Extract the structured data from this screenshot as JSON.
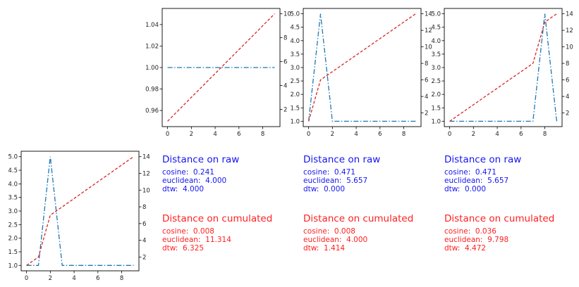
{
  "colors": {
    "blue_series": "#1f77b4",
    "red_series": "#d62728",
    "raw_text": "#1515f0",
    "cum_text": "#ff2020"
  },
  "chart_data": [
    {
      "id": "top-left",
      "type": "line",
      "x": [
        0,
        1,
        2,
        3,
        4,
        5,
        6,
        7,
        8,
        9
      ],
      "series": [
        {
          "axis": "left",
          "style": "dashdot",
          "color": "#1f77b4",
          "values": [
            1,
            1,
            1,
            1,
            1,
            1,
            1,
            1,
            1,
            1
          ]
        },
        {
          "axis": "right",
          "style": "dashed",
          "color": "#d62728",
          "values": [
            1,
            2,
            3,
            4,
            5,
            6,
            7,
            8,
            9,
            10
          ]
        }
      ],
      "xlim": [
        -0.45,
        9.45
      ],
      "ylim_left": [
        0.945,
        1.055
      ],
      "ylim_right": [
        0.55,
        10.45
      ],
      "xticks": [
        0,
        2,
        4,
        6,
        8
      ],
      "yticks_left": [
        0.96,
        0.98,
        1.0,
        1.02,
        1.04
      ],
      "yticks_left_labels": [
        "0.96",
        "0.98",
        "1.00",
        "1.02",
        "1.04"
      ],
      "yticks_right": [
        2,
        4,
        6,
        8,
        10
      ],
      "yticks_right_labels": [
        "2",
        "4",
        "6",
        "8",
        "10"
      ]
    },
    {
      "id": "top-middle",
      "type": "line",
      "x": [
        0,
        1,
        2,
        3,
        4,
        5,
        6,
        7,
        8,
        9
      ],
      "series": [
        {
          "axis": "left",
          "style": "dashdot",
          "color": "#1f77b4",
          "values": [
            1,
            5,
            1,
            1,
            1,
            1,
            1,
            1,
            1,
            1
          ]
        },
        {
          "axis": "right",
          "style": "dashed",
          "color": "#d62728",
          "values": [
            1,
            6,
            7,
            8,
            9,
            10,
            11,
            12,
            13,
            14
          ]
        }
      ],
      "xlim": [
        -0.45,
        9.45
      ],
      "ylim_left": [
        0.8,
        5.2
      ],
      "ylim_right": [
        0.35,
        14.65
      ],
      "xticks": [
        0,
        2,
        4,
        6,
        8
      ],
      "yticks_left": [
        1.0,
        1.5,
        2.0,
        2.5,
        3.0,
        3.5,
        4.0,
        4.5,
        5.0
      ],
      "yticks_left_labels": [
        "1.0",
        "1.5",
        "2.0",
        "2.5",
        "3.0",
        "3.5",
        "4.0",
        "4.5",
        "5.0"
      ],
      "yticks_right": [
        2,
        4,
        6,
        8,
        10,
        12,
        14
      ],
      "yticks_right_labels": [
        "2",
        "4",
        "6",
        "8",
        "10",
        "12",
        "14"
      ]
    },
    {
      "id": "top-right",
      "type": "line",
      "x": [
        0,
        1,
        2,
        3,
        4,
        5,
        6,
        7,
        8,
        9
      ],
      "series": [
        {
          "axis": "left",
          "style": "dashdot",
          "color": "#1f77b4",
          "values": [
            1,
            1,
            1,
            1,
            1,
            1,
            1,
            1,
            5,
            1
          ]
        },
        {
          "axis": "right",
          "style": "dashed",
          "color": "#d62728",
          "values": [
            1,
            2,
            3,
            4,
            5,
            6,
            7,
            8,
            13,
            14
          ]
        }
      ],
      "xlim": [
        -0.45,
        9.45
      ],
      "ylim_left": [
        0.8,
        5.2
      ],
      "ylim_right": [
        0.35,
        14.65
      ],
      "xticks": [
        0,
        2,
        4,
        6,
        8
      ],
      "yticks_left": [
        1.0,
        1.5,
        2.0,
        2.5,
        3.0,
        3.5,
        4.0,
        4.5,
        5.0
      ],
      "yticks_left_labels": [
        "1.0",
        "1.5",
        "2.0",
        "2.5",
        "3.0",
        "3.5",
        "4.0",
        "4.5",
        "5.0"
      ],
      "yticks_right": [
        2,
        4,
        6,
        8,
        10,
        12,
        14
      ],
      "yticks_right_labels": [
        "2",
        "4",
        "6",
        "8",
        "10",
        "12",
        "14"
      ]
    },
    {
      "id": "bottom-left",
      "type": "line",
      "x": [
        0,
        1,
        2,
        3,
        4,
        5,
        6,
        7,
        8,
        9
      ],
      "series": [
        {
          "axis": "left",
          "style": "dashdot",
          "color": "#1f77b4",
          "values": [
            1,
            1,
            5,
            1,
            1,
            1,
            1,
            1,
            1,
            1
          ]
        },
        {
          "axis": "right",
          "style": "dashed",
          "color": "#d62728",
          "values": [
            1,
            2,
            7,
            8,
            9,
            10,
            11,
            12,
            13,
            14
          ]
        }
      ],
      "xlim": [
        -0.45,
        9.45
      ],
      "ylim_left": [
        0.8,
        5.2
      ],
      "ylim_right": [
        0.35,
        14.65
      ],
      "xticks": [
        0,
        2,
        4,
        6,
        8
      ],
      "yticks_left": [
        1.0,
        1.5,
        2.0,
        2.5,
        3.0,
        3.5,
        4.0,
        4.5,
        5.0
      ],
      "yticks_left_labels": [
        "1.0",
        "1.5",
        "2.0",
        "2.5",
        "3.0",
        "3.5",
        "4.0",
        "4.5",
        "5.0"
      ],
      "yticks_right": [
        2,
        4,
        6,
        8,
        10,
        12,
        14
      ],
      "yticks_right_labels": [
        "2",
        "4",
        "6",
        "8",
        "10",
        "12",
        "14"
      ]
    }
  ],
  "metrics": [
    {
      "raw_title": "Distance on raw",
      "raw_lines": [
        "cosine:  0.241",
        "euclidean:  4.000",
        "dtw:  4.000"
      ],
      "cum_title": "Distance on cumulated",
      "cum_lines": [
        "cosine:  0.008",
        "euclidean:  11.314",
        "dtw:  6.325"
      ]
    },
    {
      "raw_title": "Distance on raw",
      "raw_lines": [
        "cosine:  0.471",
        "euclidean:  5.657",
        "dtw:  0.000"
      ],
      "cum_title": "Distance on cumulated",
      "cum_lines": [
        "cosine:  0.008",
        "euclidean:  4.000",
        "dtw:  1.414"
      ]
    },
    {
      "raw_title": "Distance on raw",
      "raw_lines": [
        "cosine:  0.471",
        "euclidean:  5.657",
        "dtw:  0.000"
      ],
      "cum_title": "Distance on cumulated",
      "cum_lines": [
        "cosine:  0.036",
        "euclidean:  9.798",
        "dtw:  4.472"
      ]
    }
  ]
}
